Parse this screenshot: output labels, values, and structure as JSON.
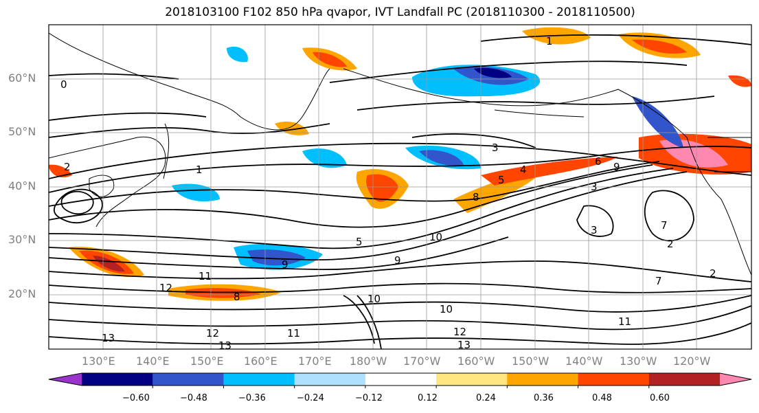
{
  "title": "2018103100 F102 850 hPa qvapor, IVT Landfall PC (2018110300 - 2018110500)",
  "lat_labels": [
    "60°N",
    "50°N",
    "40°N",
    "30°N",
    "20°N"
  ],
  "lon_labels": [
    "130°E",
    "140°E",
    "150°E",
    "160°E",
    "170°E",
    "180°W",
    "170°W",
    "160°W",
    "150°W",
    "140°W",
    "130°W",
    "120°W"
  ],
  "colorbar": {
    "ticks": [
      "−0.60",
      "−0.48",
      "−0.36",
      "−0.24",
      "−0.12",
      "0.12",
      "0.24",
      "0.36",
      "0.48",
      "0.60"
    ],
    "colors": [
      "#9933cc",
      "#000080",
      "#3355cc",
      "#00bfff",
      "#b0e0ff",
      "#ffffff",
      "#ffe680",
      "#ffa500",
      "#ff4500",
      "#b22222",
      "#ff88b0"
    ]
  },
  "contour_labels": [
    "1",
    "0",
    "2",
    "1",
    "3",
    "4",
    "5",
    "6",
    "8",
    "9",
    "10",
    "11",
    "12",
    "13",
    "7",
    "2",
    "3",
    "5",
    "9",
    "10",
    "11",
    "12",
    "13",
    "9",
    "10",
    "12",
    "13",
    "11",
    "2",
    "3",
    "8",
    "7"
  ],
  "colors": {
    "axis": "#000000",
    "grid": "#999999",
    "tick_label": "#808080"
  }
}
